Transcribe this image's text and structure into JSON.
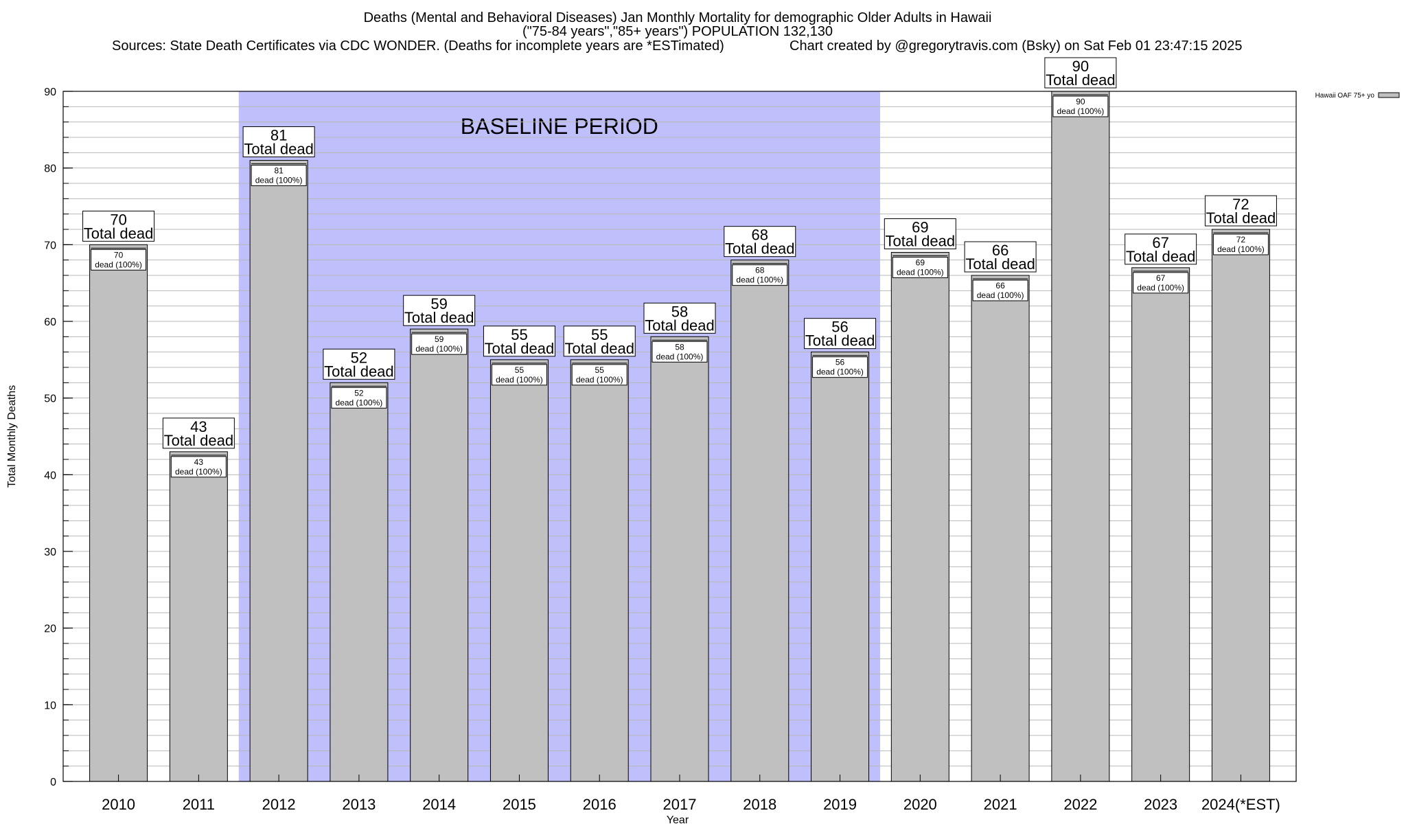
{
  "chart_data": {
    "type": "bar",
    "title_lines": [
      "Deaths (Mental and Behavioral Diseases) Jan Monthly Mortality for demographic Older Adults in Hawaii",
      "(\"75-84 years\",\"85+ years\") POPULATION 132,130"
    ],
    "sources": "Sources: State Death Certificates via CDC WONDER. (Deaths for incomplete years are *ESTimated)",
    "credit": "Chart created by @gregorytravis.com (Bsky) on Sat Feb 01 23:47:15 2025",
    "xlabel": "Year",
    "ylabel": "Total Monthly Deaths",
    "ylim": [
      0,
      90
    ],
    "y_ticks": [
      0,
      10,
      20,
      30,
      40,
      50,
      60,
      70,
      80,
      90
    ],
    "grid": true,
    "categories": [
      "2010",
      "2011",
      "2012",
      "2013",
      "2014",
      "2015",
      "2016",
      "2017",
      "2018",
      "2019",
      "2020",
      "2021",
      "2022",
      "2023",
      "2024(*EST)"
    ],
    "series": [
      {
        "name": "Hawaii OAF 75+ yo",
        "color": "#c0c0c0",
        "values": [
          70,
          43,
          81,
          52,
          59,
          55,
          55,
          58,
          68,
          56,
          69,
          66,
          90,
          67,
          72
        ]
      }
    ],
    "total_label_suffix": "Total dead",
    "inner_label_suffix": "dead (100%)",
    "legend_position": "top-right",
    "baseline_period": {
      "label": "BASELINE PERIOD",
      "from": "2012",
      "to": "2019",
      "color": "#bfbffb"
    }
  }
}
